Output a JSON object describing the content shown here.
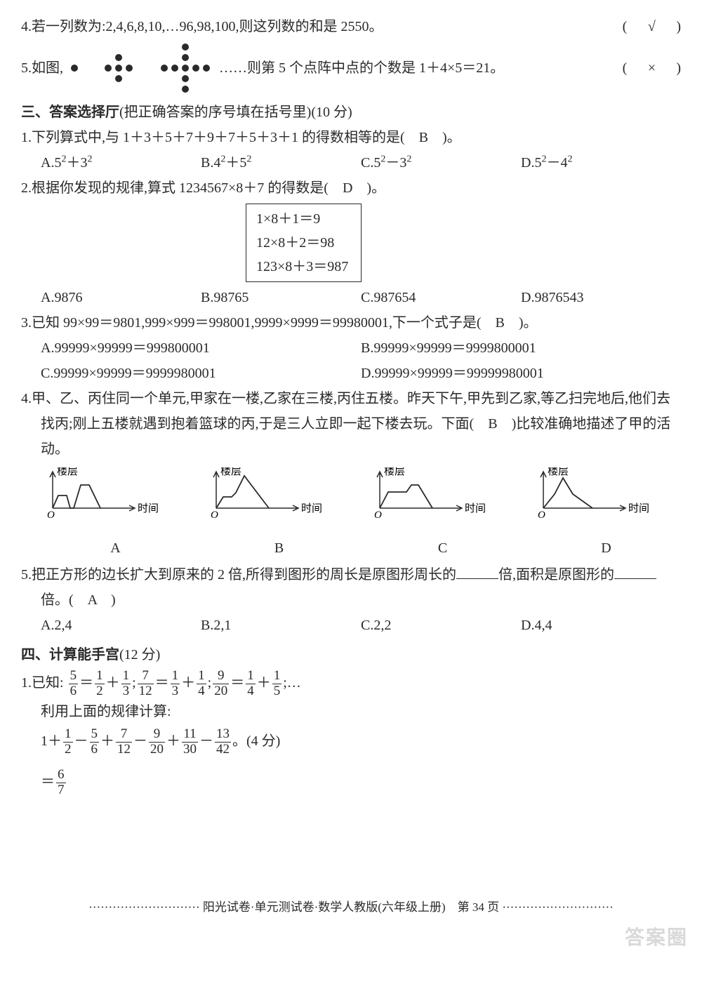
{
  "q4": {
    "text": "4.若一列数为:2,4,6,8,10,…96,98,100,则这列数的和是 2550。",
    "answer": "√"
  },
  "q5": {
    "pre": "5.如图,",
    "post": "……则第 5 个点阵中点的个数是 1＋4×5＝21。",
    "answer": "×",
    "figs": [
      {
        "dots": [
          [
            0,
            0
          ]
        ]
      },
      {
        "dots": [
          [
            0,
            -1
          ],
          [
            -1,
            0
          ],
          [
            0,
            0
          ],
          [
            1,
            0
          ],
          [
            0,
            1
          ]
        ]
      },
      {
        "dots": [
          [
            0,
            -2
          ],
          [
            0,
            -1
          ],
          [
            -2,
            0
          ],
          [
            -1,
            0
          ],
          [
            0,
            0
          ],
          [
            1,
            0
          ],
          [
            2,
            0
          ],
          [
            0,
            1
          ],
          [
            0,
            2
          ]
        ]
      }
    ],
    "dot_color": "#2a2a2a",
    "dot_r": 5
  },
  "sec3": {
    "title": "三、答案选择厅",
    "sub": "(把正确答案的序号填在括号里)(10 分)"
  },
  "s3q1": {
    "text": "1.下列算式中,与 1＋3＋5＋7＋9＋7＋5＋3＋1 的得数相等的是(",
    "post": ")。",
    "answer": "B",
    "opts": {
      "A": "A.5²＋3²",
      "B": "B.4²＋5²",
      "C": "C.5²－3²",
      "D": "D.5²－4²"
    }
  },
  "s3q2": {
    "text": "2.根据你发现的规律,算式 1234567×8＋7 的得数是(",
    "post": ")。",
    "answer": "D",
    "box": [
      "1×8＋1＝9",
      "12×8＋2＝98",
      "123×8＋3＝987"
    ],
    "opts": {
      "A": "A.9876",
      "B": "B.98765",
      "C": "C.987654",
      "D": "D.9876543"
    }
  },
  "s3q3": {
    "text": "3.已知 99×99＝9801,999×999＝998001,9999×9999＝99980001,下一个式子是(",
    "post": ")。",
    "answer": "B",
    "opts": {
      "A": "A.99999×99999＝999800001",
      "B": "B.99999×99999＝9999800001",
      "C": "C.99999×99999＝9999980001",
      "D": "D.99999×99999＝99999980001"
    }
  },
  "s3q4": {
    "text": "4.甲、乙、丙住同一个单元,甲家在一楼,乙家在三楼,丙住五楼。昨天下午,甲先到乙家,等乙扫完地后,他们去找丙;刚上五楼就遇到抱着篮球的丙,于是三人立即一起下楼去玩。下面(",
    "post": ")比较准确地描述了甲的活动。",
    "answer": "B",
    "ylabel": "楼层",
    "xlabel": "时间",
    "origin": "O",
    "charts": {
      "A": {
        "pts": [
          [
            10,
            58
          ],
          [
            18,
            40
          ],
          [
            30,
            40
          ],
          [
            35,
            58
          ],
          [
            40,
            58
          ],
          [
            50,
            25
          ],
          [
            62,
            25
          ],
          [
            78,
            58
          ]
        ]
      },
      "B": {
        "pts": [
          [
            10,
            58
          ],
          [
            20,
            42
          ],
          [
            32,
            42
          ],
          [
            38,
            36
          ],
          [
            50,
            12
          ],
          [
            85,
            58
          ]
        ]
      },
      "C": {
        "pts": [
          [
            10,
            58
          ],
          [
            22,
            35
          ],
          [
            48,
            35
          ],
          [
            55,
            25
          ],
          [
            65,
            25
          ],
          [
            85,
            58
          ]
        ]
      },
      "D": {
        "pts": [
          [
            10,
            58
          ],
          [
            26,
            38
          ],
          [
            38,
            15
          ],
          [
            52,
            38
          ],
          [
            80,
            58
          ]
        ]
      }
    },
    "stroke": "#2a2a2a"
  },
  "s3q5": {
    "pre": "5.把正方形的边长扩大到原来的 2 倍,所得到图形的周长是原图形周长的",
    "mid": "倍,面积是原图形的",
    "post": "倍。(",
    "post2": ")",
    "answer": "A",
    "opts": {
      "A": "A.2,4",
      "B": "B.2,1",
      "C": "C.2,2",
      "D": "D.4,4"
    }
  },
  "sec4": {
    "title": "四、计算能手宫",
    "sub": "(12 分)"
  },
  "s4q1": {
    "lead": "1.已知:",
    "known": [
      [
        "5",
        "6",
        "1",
        "2",
        "1",
        "3"
      ],
      [
        "7",
        "12",
        "1",
        "3",
        "1",
        "4"
      ],
      [
        "9",
        "20",
        "1",
        "4",
        "1",
        "5"
      ]
    ],
    "use": "利用上面的规律计算:",
    "expr_lead": "1＋",
    "expr": [
      [
        "1",
        "2"
      ],
      [
        "5",
        "6"
      ],
      [
        "7",
        "12"
      ],
      [
        "9",
        "20"
      ],
      [
        "11",
        "30"
      ],
      [
        "13",
        "42"
      ]
    ],
    "signs": [
      "－",
      "＋",
      "－",
      "＋",
      "－"
    ],
    "tail": "。(4 分)",
    "eq": "＝",
    "ans_num": "6",
    "ans_den": "7"
  },
  "footer": "阳光试卷·单元测试卷·数学人教版(六年级上册)　第 34 页",
  "watermark": "答案圈"
}
